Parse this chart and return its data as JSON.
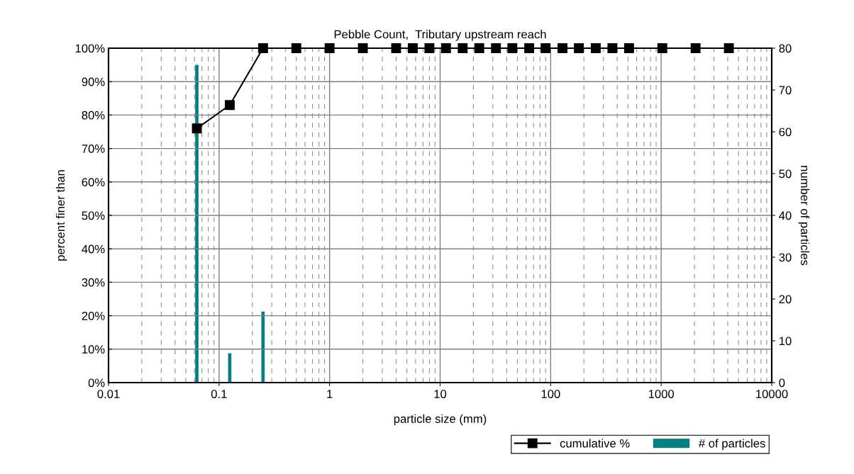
{
  "chart_data": {
    "type": "line",
    "title": "Pebble Count,  Tributary upstream reach",
    "xlabel": "particle size (mm)",
    "ylabel": "percent finer than",
    "y2label": "number of particles",
    "log": "x",
    "xlim": [
      0.01,
      10000
    ],
    "xticks": [
      0.01,
      0.1,
      1,
      10,
      100,
      1000,
      10000
    ],
    "ylim": [
      0,
      100
    ],
    "yticks": [
      {
        "value": 0,
        "label": "0%"
      },
      {
        "value": 10,
        "label": "10%"
      },
      {
        "value": 20,
        "label": "20%"
      },
      {
        "value": 30,
        "label": "30%"
      },
      {
        "value": 40,
        "label": "40%"
      },
      {
        "value": 50,
        "label": "50%"
      },
      {
        "value": 60,
        "label": "60%"
      },
      {
        "value": 70,
        "label": "70%"
      },
      {
        "value": 80,
        "label": "80%"
      },
      {
        "value": 90,
        "label": "90%"
      },
      {
        "value": 100,
        "label": "100%"
      }
    ],
    "y2lim": [
      0,
      80
    ],
    "y2ticks": [
      0,
      10,
      20,
      30,
      40,
      50,
      60,
      70,
      80
    ],
    "grid": true,
    "legend": "bottom right",
    "series": [
      {
        "name": "# of particles",
        "type": "bar",
        "axis": "y2",
        "color": "#008080",
        "x": [
          0.063,
          0.125,
          0.25
        ],
        "values": [
          76,
          7,
          17
        ]
      },
      {
        "name": "cumulative %",
        "color": "#000000",
        "marker": "square",
        "x": [
          0.063,
          0.125,
          0.25,
          0.5,
          1,
          2,
          4,
          5.66,
          8,
          11.3,
          16,
          22.6,
          32,
          45,
          64,
          90,
          128,
          180,
          256,
          362,
          512,
          1024,
          2048,
          4096
        ],
        "values": [
          76,
          83,
          100,
          100,
          100,
          100,
          100,
          100,
          100,
          100,
          100,
          100,
          100,
          100,
          100,
          100,
          100,
          100,
          100,
          100,
          100,
          100,
          100,
          100
        ]
      }
    ]
  }
}
